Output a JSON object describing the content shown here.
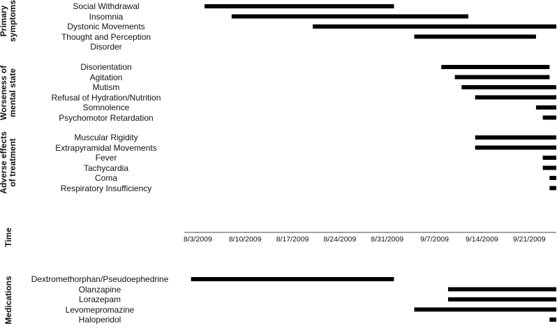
{
  "chart_data": {
    "type": "timeline",
    "x_label": "Time",
    "xlim": [
      "2009-08-01",
      "2009-09-25"
    ],
    "xticks": [
      {
        "value": "2009-08-03",
        "label": "8/3/2009"
      },
      {
        "value": "2009-08-10",
        "label": "8/10/2009"
      },
      {
        "value": "2009-08-17",
        "label": "8/17/2009"
      },
      {
        "value": "2009-08-24",
        "label": "8/24/2009"
      },
      {
        "value": "2009-08-31",
        "label": "8/31/2009"
      },
      {
        "value": "2009-09-07",
        "label": "9/7/2009"
      },
      {
        "value": "2009-09-14",
        "label": "9/14/2009"
      },
      {
        "value": "2009-09-21",
        "label": "9/21/2009"
      }
    ],
    "color": "#000000",
    "groups": [
      {
        "name": "Primary symptoms",
        "tasks": [
          {
            "label": "Social Withdrawal",
            "start": "2009-08-04",
            "end": "2009-09-01"
          },
          {
            "label": "Insomnia",
            "start": "2009-08-08",
            "end": "2009-09-12"
          },
          {
            "label": "Dystonic Movements",
            "start": "2009-08-20",
            "end": "2009-09-25"
          },
          {
            "label": "Thought and Perception Disorder",
            "start": "2009-09-04",
            "end": "2009-09-22"
          }
        ]
      },
      {
        "name": "Worseness of mental state",
        "tasks": [
          {
            "label": "Disorientation",
            "start": "2009-09-08",
            "end": "2009-09-24"
          },
          {
            "label": "Agitation",
            "start": "2009-09-10",
            "end": "2009-09-24"
          },
          {
            "label": "Mutism",
            "start": "2009-09-11",
            "end": "2009-09-25"
          },
          {
            "label": "Refusal of Hydration/Nutrition",
            "start": "2009-09-13",
            "end": "2009-09-25"
          },
          {
            "label": "Somnolence",
            "start": "2009-09-22",
            "end": "2009-09-25"
          },
          {
            "label": "Psychomotor Retardation",
            "start": "2009-09-23",
            "end": "2009-09-25"
          }
        ]
      },
      {
        "name": "Adverse effects of treatment",
        "tasks": [
          {
            "label": "Muscular Rigidity",
            "start": "2009-09-13",
            "end": "2009-09-25"
          },
          {
            "label": "Extrapyramidal Movements",
            "start": "2009-09-13",
            "end": "2009-09-25"
          },
          {
            "label": "Fever",
            "start": "2009-09-23",
            "end": "2009-09-25"
          },
          {
            "label": "Tachycardia",
            "start": "2009-09-23",
            "end": "2009-09-25"
          },
          {
            "label": "Coma",
            "start": "2009-09-24",
            "end": "2009-09-25"
          },
          {
            "label": "Respiratory Insufficiency",
            "start": "2009-09-24",
            "end": "2009-09-25"
          }
        ]
      },
      {
        "name": "Medications",
        "tasks": [
          {
            "label": "Dextromethorphan/Pseudoephedrine",
            "start": "2009-08-02",
            "end": "2009-09-01"
          },
          {
            "label": "Olanzapine",
            "start": "2009-09-09",
            "end": "2009-09-25"
          },
          {
            "label": "Lorazepam",
            "start": "2009-09-09",
            "end": "2009-09-25"
          },
          {
            "label": "Levomepromazine",
            "start": "2009-09-04",
            "end": "2009-09-25"
          },
          {
            "label": "Haloperidol",
            "start": "2009-09-24",
            "end": "2009-09-25"
          }
        ]
      }
    ]
  }
}
